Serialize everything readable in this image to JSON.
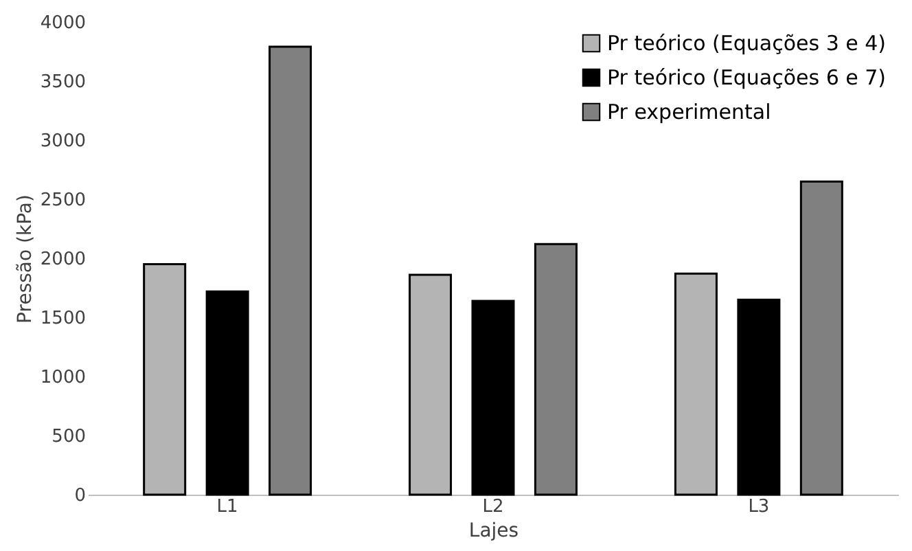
{
  "chart_data": {
    "type": "bar",
    "xlabel": "Lajes",
    "ylabel": "Pressão (kPa)",
    "categories": [
      "L1",
      "L2",
      "L3"
    ],
    "series": [
      {
        "name": "Pr teórico (Equações 3 e 4)",
        "color": "#b4b4b4",
        "values": [
          1950,
          1860,
          1870
        ]
      },
      {
        "name": "Pr teórico (Equações 6 e 7)",
        "color": "#000000",
        "values": [
          1720,
          1640,
          1650
        ]
      },
      {
        "name": "Pr experimental",
        "color": "#808080",
        "values": [
          3790,
          2120,
          2650
        ]
      }
    ],
    "ylim": [
      0,
      4000
    ],
    "yticks": [
      0,
      500,
      1000,
      1500,
      2000,
      2500,
      3000,
      3500,
      4000
    ],
    "grid": false,
    "legend": "top right"
  }
}
